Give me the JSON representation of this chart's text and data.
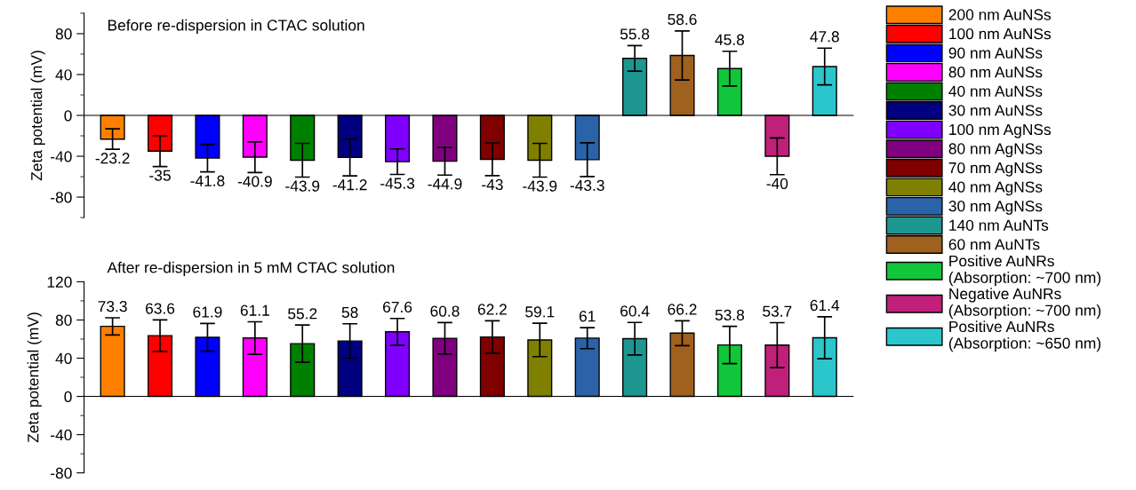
{
  "chart_data": [
    {
      "type": "bar",
      "title": "Before re-dispersion in CTAC solution",
      "ylabel": "Zeta potential (mV)",
      "categories": [
        null,
        null,
        null,
        null,
        null,
        null,
        null,
        null,
        null,
        null,
        null,
        null,
        null,
        null,
        null,
        null
      ],
      "ylim": [
        -100,
        100
      ],
      "yticks": [
        {
          "value": -100,
          "label": null
        },
        -80,
        {
          "value": -60,
          "label": null
        },
        -40,
        {
          "value": -20,
          "label": null
        },
        0,
        {
          "value": 20,
          "label": null
        },
        40,
        {
          "value": 60,
          "label": null
        },
        80,
        {
          "value": 100,
          "label": null
        }
      ],
      "tick_labels": "y",
      "data_labels": true,
      "legend": "right",
      "series": [
        {
          "name": "200 nm AuNSs",
          "color": "#ff8000",
          "values": [
            -23.2,
            null,
            null,
            null,
            null,
            null,
            null,
            null,
            null,
            null,
            null,
            null,
            null,
            null,
            null,
            null
          ],
          "errors": [
            10,
            null,
            null,
            null,
            null,
            null,
            null,
            null,
            null,
            null,
            null,
            null,
            null,
            null,
            null,
            null
          ]
        },
        {
          "name": "100 nm AuNSs",
          "color": "#ff0000",
          "values": [
            null,
            -35,
            null,
            null,
            null,
            null,
            null,
            null,
            null,
            null,
            null,
            null,
            null,
            null,
            null,
            null
          ],
          "errors": [
            null,
            15,
            null,
            null,
            null,
            null,
            null,
            null,
            null,
            null,
            null,
            null,
            null,
            null,
            null,
            null
          ]
        },
        {
          "name": "90 nm AuNSs",
          "color": "#0000ff",
          "values": [
            null,
            null,
            -41.8,
            null,
            null,
            null,
            null,
            null,
            null,
            null,
            null,
            null,
            null,
            null,
            null,
            null
          ],
          "errors": [
            null,
            null,
            13.5,
            null,
            null,
            null,
            null,
            null,
            null,
            null,
            null,
            null,
            null,
            null,
            null,
            null
          ]
        },
        {
          "name": "80 nm AuNSs",
          "color": "#ff00ff",
          "values": [
            null,
            null,
            null,
            -40.9,
            null,
            null,
            null,
            null,
            null,
            null,
            null,
            null,
            null,
            null,
            null,
            null
          ],
          "errors": [
            null,
            null,
            null,
            15,
            null,
            null,
            null,
            null,
            null,
            null,
            null,
            null,
            null,
            null,
            null,
            null
          ]
        },
        {
          "name": "40 nm AuNSs",
          "color": "#008000",
          "values": [
            null,
            null,
            null,
            null,
            -43.9,
            null,
            null,
            null,
            null,
            null,
            null,
            null,
            null,
            null,
            null,
            null
          ],
          "errors": [
            null,
            null,
            null,
            null,
            16.5,
            null,
            null,
            null,
            null,
            null,
            null,
            null,
            null,
            null,
            null,
            null
          ]
        },
        {
          "name": "30 nm AuNSs",
          "color": "#000080",
          "values": [
            null,
            null,
            null,
            null,
            null,
            -41.2,
            null,
            null,
            null,
            null,
            null,
            null,
            null,
            null,
            null,
            null
          ],
          "errors": [
            null,
            null,
            null,
            null,
            null,
            18,
            null,
            null,
            null,
            null,
            null,
            null,
            null,
            null,
            null,
            null
          ]
        },
        {
          "name": "100 nm AgNSs",
          "color": "#8000ff",
          "values": [
            null,
            null,
            null,
            null,
            null,
            null,
            -45.3,
            null,
            null,
            null,
            null,
            null,
            null,
            null,
            null,
            null
          ],
          "errors": [
            null,
            null,
            null,
            null,
            null,
            null,
            12.5,
            null,
            null,
            null,
            null,
            null,
            null,
            null,
            null,
            null
          ]
        },
        {
          "name": "80 nm AgNSs",
          "color": "#800080",
          "values": [
            null,
            null,
            null,
            null,
            null,
            null,
            null,
            -44.9,
            null,
            null,
            null,
            null,
            null,
            null,
            null,
            null
          ],
          "errors": [
            null,
            null,
            null,
            null,
            null,
            null,
            null,
            13.5,
            null,
            null,
            null,
            null,
            null,
            null,
            null,
            null
          ]
        },
        {
          "name": "70 nm AgNSs",
          "color": "#800000",
          "values": [
            null,
            null,
            null,
            null,
            null,
            null,
            null,
            null,
            -43,
            null,
            null,
            null,
            null,
            null,
            null,
            null
          ],
          "errors": [
            null,
            null,
            null,
            null,
            null,
            null,
            null,
            null,
            16,
            null,
            null,
            null,
            null,
            null,
            null,
            null
          ]
        },
        {
          "name": "40 nm AgNSs",
          "color": "#808000",
          "values": [
            null,
            null,
            null,
            null,
            null,
            null,
            null,
            null,
            null,
            -43.9,
            null,
            null,
            null,
            null,
            null,
            null
          ],
          "errors": [
            null,
            null,
            null,
            null,
            null,
            null,
            null,
            null,
            null,
            16.5,
            null,
            null,
            null,
            null,
            null,
            null
          ]
        },
        {
          "name": "30 nm AgNSs",
          "color": "#2b63a8",
          "values": [
            null,
            null,
            null,
            null,
            null,
            null,
            null,
            null,
            null,
            null,
            -43.3,
            null,
            null,
            null,
            null,
            null
          ],
          "errors": [
            null,
            null,
            null,
            null,
            null,
            null,
            null,
            null,
            null,
            null,
            16.5,
            null,
            null,
            null,
            null,
            null
          ]
        },
        {
          "name": "140 nm AuNTs",
          "color": "#1e9690",
          "values": [
            null,
            null,
            null,
            null,
            null,
            null,
            null,
            null,
            null,
            null,
            null,
            55.8,
            null,
            null,
            null,
            null
          ],
          "errors": [
            null,
            null,
            null,
            null,
            null,
            null,
            null,
            null,
            null,
            null,
            null,
            12.5,
            null,
            null,
            null,
            null
          ]
        },
        {
          "name": "60 nm AuNTs",
          "color": "#a0601e",
          "values": [
            null,
            null,
            null,
            null,
            null,
            null,
            null,
            null,
            null,
            null,
            null,
            null,
            58.6,
            null,
            null,
            null
          ],
          "errors": [
            null,
            null,
            null,
            null,
            null,
            null,
            null,
            null,
            null,
            null,
            null,
            null,
            24,
            null,
            null,
            null
          ]
        },
        {
          "name": "Positive AuNRs\n(Absorption: ~700 nm)",
          "color": "#11c63b",
          "values": [
            null,
            null,
            null,
            null,
            null,
            null,
            null,
            null,
            null,
            null,
            null,
            null,
            null,
            45.8,
            null,
            null
          ],
          "errors": [
            null,
            null,
            null,
            null,
            null,
            null,
            null,
            null,
            null,
            null,
            null,
            null,
            null,
            17,
            null,
            null
          ]
        },
        {
          "name": "Negative AuNRs\n(Absorption: ~700 nm)",
          "color": "#c0207a",
          "values": [
            null,
            null,
            null,
            null,
            null,
            null,
            null,
            null,
            null,
            null,
            null,
            null,
            null,
            null,
            -40,
            null
          ],
          "errors": [
            null,
            null,
            null,
            null,
            null,
            null,
            null,
            null,
            null,
            null,
            null,
            null,
            null,
            null,
            18,
            null
          ]
        },
        {
          "name": "Positive AuNRs\n(Absorption: ~650 nm)",
          "color": "#2bc6cc",
          "values": [
            null,
            null,
            null,
            null,
            null,
            null,
            null,
            null,
            null,
            null,
            null,
            null,
            null,
            null,
            null,
            47.8
          ],
          "errors": [
            null,
            null,
            null,
            null,
            null,
            null,
            null,
            null,
            null,
            null,
            null,
            null,
            null,
            null,
            null,
            18
          ]
        }
      ]
    },
    {
      "type": "bar",
      "title": "After re-dispersion in 5 mM CTAC solution",
      "ylabel": "Zeta potential (mV)",
      "categories": [
        null,
        null,
        null,
        null,
        null,
        null,
        null,
        null,
        null,
        null,
        null,
        null,
        null,
        null,
        null,
        null
      ],
      "ylim": [
        -80,
        120
      ],
      "yticks": [
        -80,
        {
          "value": -60,
          "label": null
        },
        -40,
        {
          "value": -20,
          "label": null
        },
        0,
        {
          "value": 20,
          "label": null
        },
        40,
        {
          "value": 60,
          "label": null
        },
        80,
        {
          "value": 100,
          "label": null
        },
        120
      ],
      "tick_labels": "y",
      "data_labels": true,
      "values": [
        73.3,
        63.6,
        61.9,
        61.1,
        55.2,
        58,
        67.6,
        60.8,
        62.2,
        59.1,
        61,
        60.4,
        66.2,
        53.8,
        53.7,
        61.4
      ],
      "errors": [
        9,
        16.5,
        14.5,
        17,
        19.5,
        18,
        14,
        16.5,
        17,
        17.5,
        11,
        17,
        13,
        19.5,
        23.5,
        22
      ],
      "colors": [
        "#ff8000",
        "#ff0000",
        "#0000ff",
        "#ff00ff",
        "#008000",
        "#000080",
        "#8000ff",
        "#800080",
        "#800000",
        "#808000",
        "#2b63a8",
        "#1e9690",
        "#a0601e",
        "#11c63b",
        "#c0207a",
        "#2bc6cc"
      ]
    }
  ]
}
